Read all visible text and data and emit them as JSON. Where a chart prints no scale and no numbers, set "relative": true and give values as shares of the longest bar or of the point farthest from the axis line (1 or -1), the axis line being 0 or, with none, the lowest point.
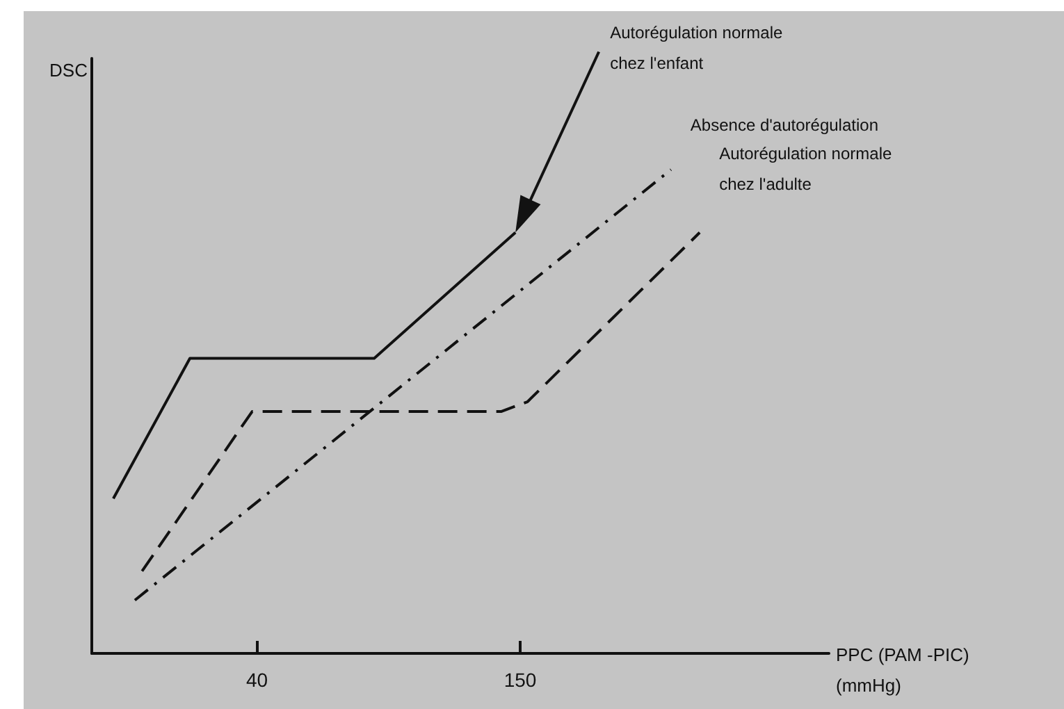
{
  "chart_data": {
    "type": "line",
    "relative": true,
    "xlabel": "PPC (PAM -PIC) (mmHg)",
    "xlim": [
      -29,
      279
    ],
    "xticks": [
      40,
      150
    ],
    "grid": false,
    "legend": false,
    "marker": "none",
    "annotations": [
      "Autorégulation normale chez l'enfant",
      "DSC"
    ],
    "series": [
      {
        "color": "#111111",
        "line_style": "solid",
        "x": [
          -20,
          12,
          89,
          148
        ],
        "values": [
          0.32,
          0.61,
          0.61,
          0.87
        ]
      },
      {
        "name": "Absence d'autorégulation",
        "color": "#111111",
        "line_style": "dashdot",
        "x": [
          -11,
          213
        ],
        "values": [
          0.11,
          1
        ]
      },
      {
        "name": "Autorégulation normale chez l'adulte",
        "color": "#111111",
        "line_style": "dashed",
        "x": [
          -8,
          38,
          142,
          153,
          225
        ],
        "values": [
          0.17,
          0.5,
          0.5,
          0.52,
          0.87
        ]
      }
    ]
  }
}
